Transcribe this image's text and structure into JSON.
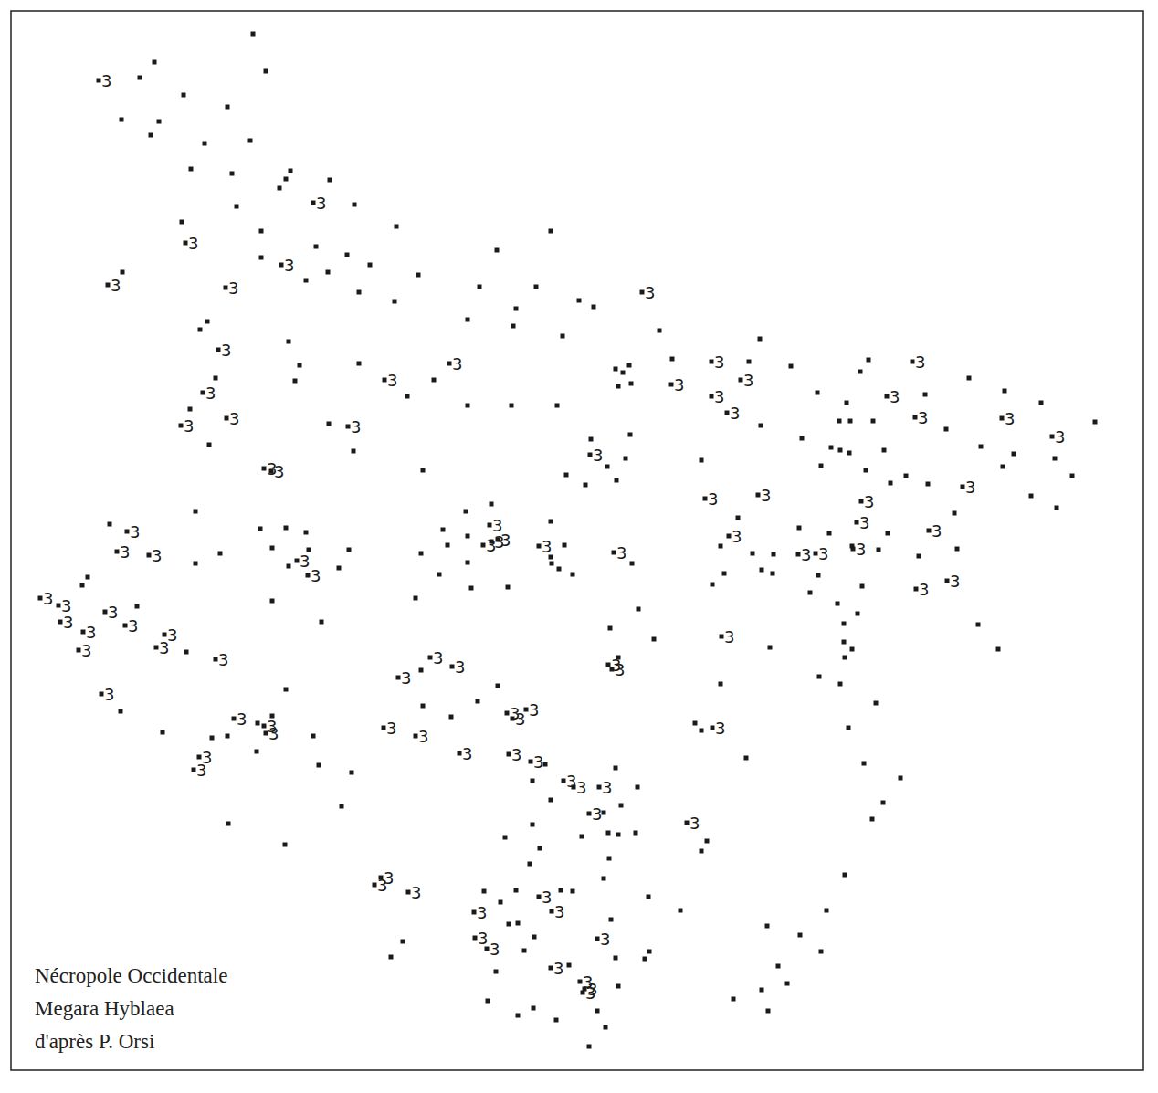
{
  "chart_data": {
    "type": "scatter",
    "annotations": [
      "Nécropole Occidentale",
      "Megara Hyblaea",
      "d'après P. Orsi"
    ],
    "xlim": [
      12,
      1252
    ],
    "ylim": [
      1172,
      12
    ],
    "tick_labels": false,
    "grid": false,
    "series": [
      {
        "marker": "square",
        "color": "#1a1a1a",
        "x": [
          277,
          169,
          291,
          153,
          201,
          249,
          133,
          174,
          165,
          274,
          224,
          209,
          318,
          254,
          313,
          361,
          306,
          388,
          259,
          199,
          434,
          286,
          603,
          346,
          544,
          380,
          286,
          405,
          134,
          359,
          458,
          335,
          525,
          587,
          393,
          432,
          634,
          650,
          565,
          512,
          227,
          562,
          219,
          722,
          616,
          832,
          316,
          736,
          820,
          951,
          393,
          328,
          866,
          689,
          674,
          942,
          682,
          236,
          1061,
          323,
          475,
          677,
          691,
          1100,
          895,
          1013,
          446,
          1140,
          927,
          512,
          560,
          610,
          208,
          956,
          919,
          931,
          360,
          833,
          1199,
          1036,
          690,
          647,
          878,
          229,
          910,
          1074,
          387,
          920,
          930,
          968,
          1110,
          685,
          768,
          899,
          665,
          1098,
          463,
          948,
          620,
          992,
          1174,
          1155,
          675,
          641,
          975,
          1016,
          1129,
          538,
          1157,
          214,
          510,
          1045,
          808,
          603,
          120,
          875,
          485,
          972,
          285,
          313,
          335,
          512,
          908,
          298,
          789,
          382,
          933,
          241,
          461,
          490,
          618,
          962,
          1048,
          1006,
          824,
          847,
          603,
          338,
          214,
          604,
          316,
          371,
          512,
          692,
          834,
          846,
          612,
          627,
          96,
          481,
          793,
          896,
          90,
          516,
          556,
          780,
          944,
          887,
          298,
          455,
          917,
          150,
          699,
          939,
          352,
          668,
          1071,
          924,
          716,
          924,
          204,
          843,
          1093,
          933,
          925,
          677,
          461,
          897,
          920,
          789,
          313,
          545,
          959,
          463,
          523,
          132,
          298,
          494,
          761,
          768,
          282,
          929,
          178,
          249,
          343,
          232,
          817,
          597,
          946,
          281,
          349,
          385,
          674,
          986,
          583,
          698,
          603,
          967,
          374,
          680,
          955,
          661,
          250,
          774,
          583,
          666,
          677,
          696,
          553,
          637,
          312,
          591,
          768,
          667,
          580,
          925,
          661,
          530,
          565,
          614,
          627,
          710,
          548,
          745,
          905,
          669,
          567,
          557,
          840,
          876,
          441,
          428,
          585,
          711,
          706,
          574,
          899,
          674,
          623,
          852,
          543,
          677,
          834,
          862,
          534,
          803,
          567,
          584,
          654,
          841,
          609,
          663,
          645
        ],
        "values": [
          37,
          68,
          78,
          85,
          104,
          117,
          131,
          133,
          148,
          154,
          157,
          185,
          187,
          190,
          196,
          197,
          206,
          224,
          226,
          243,
          248,
          253,
          253,
          270,
          274,
          279,
          282,
          290,
          298,
          298,
          301,
          307,
          314,
          314,
          320,
          330,
          329,
          336,
          338,
          350,
          352,
          357,
          361,
          362,
          368,
          371,
          374,
          393,
          396,
          394,
          398,
          400,
          401,
          400,
          404,
          407,
          408,
          414,
          414,
          417,
          416,
          423,
          420,
          428,
          430,
          432,
          434,
          441,
          441,
          444,
          444,
          444,
          448,
          461,
          461,
          461,
          464,
          466,
          462,
          470,
          476,
          481,
          480,
          487,
          490,
          489,
          494,
          493,
          496,
          493,
          497,
          502,
          504,
          510,
          511,
          511,
          515,
          515,
          520,
          521,
          521,
          502,
          526,
          531,
          529,
          530,
          543,
          552,
          556,
          560,
          560,
          562,
          567,
          571,
          574,
          578,
          580,
          584,
          579,
          578,
          583,
          587,
          584,
          600,
          598,
          602,
          598,
          606,
          606,
          597,
          597,
          602,
          601,
          609,
          606,
          607,
          610,
          602,
          617,
          617,
          620,
          622,
          616,
          617,
          624,
          628,
          623,
          629,
          632,
          629,
          628,
          630,
          641,
          644,
          643,
          640,
          642,
          649,
          658,
          655,
          661,
          664,
          667,
          672,
          681,
          688,
          684,
          683,
          700,
          703,
          714,
          709,
          711,
          711,
          720,
          720,
          734,
          741,
          749,
          749,
          755,
          751,
          770,
          773,
          768,
          779,
          784,
          785,
          792,
          800,
          792,
          797,
          802,
          806,
          806,
          808,
          830,
          837,
          836,
          823,
          838,
          846,
          841,
          852,
          855,
          862,
          876,
          879,
          883,
          882,
          897,
          890,
          902,
          921,
          903,
          912,
          914,
          912,
          917,
          916,
          925,
          929,
          932,
          940,
          946,
          958,
          962,
          976,
          975,
          975,
          976,
          982,
          988,
          997,
          997,
          1007,
          1011,
          1012,
          1014,
          1024,
          1031,
          1048,
          1026,
          1042,
          1050,
          1041,
          1042,
          1049,
          1057,
          1058,
          1064,
          1080,
          1084,
          1077,
          1096,
          1094,
          1112,
          1104,
          1107,
          1107,
          1117,
          1125,
          1146
        ]
      },
      {
        "marker": "square",
        "color": "#1a1a1a",
        "x": [
          108,
          343,
          203,
          308,
          118,
          247,
          703,
          239,
          779,
          999,
          492,
          421,
          735,
          811,
          222,
          779,
          971,
          796,
          1002,
          1097,
          248,
          198,
          381,
          1152,
          646,
          289,
          297,
          1054,
          772,
          830,
          943,
          938,
          536,
          139,
          1017,
          798,
          538,
          545,
          529,
          590,
          934,
          128,
          163,
          874,
          893,
          672,
          325,
          337,
          1037,
          1003,
          44,
          64,
          115,
          66,
          137,
          91,
          180,
          790,
          171,
          86,
          236,
          471,
          495,
          666,
          670,
          436,
          111,
          555,
          576,
          561,
          256,
          289,
          780,
          291,
          420,
          455,
          218,
          212,
          503,
          557,
          581,
          617,
          628,
          656,
          645,
          752,
          417,
          410,
          447,
          590,
          519,
          604,
          520,
          654,
          533,
          603,
          635,
          640,
          638
        ],
        "values": [
          88,
          222,
          266,
          290,
          312,
          315,
          320,
          383,
          396,
          396,
          398,
          416,
          421,
          416,
          430,
          434,
          434,
          452,
          457,
          458,
          458,
          466,
          467,
          478,
          498,
          513,
          516,
          533,
          546,
          542,
          549,
          572,
          575,
          582,
          581,
          587,
          593,
          591,
          597,
          598,
          601,
          604,
          608,
          607,
          606,
          605,
          614,
          630,
          636,
          645,
          655,
          663,
          670,
          681,
          685,
          692,
          695,
          697,
          709,
          712,
          722,
          720,
          730,
          728,
          733,
          742,
          760,
          781,
          777,
          787,
          787,
          795,
          797,
          803,
          797,
          806,
          829,
          843,
          825,
          826,
          834,
          855,
          862,
          862,
          891,
          901,
          961,
          969,
          977,
          982,
          999,
          998,
          1027,
          1028,
          1039,
          1060,
          1075,
          1083,
          1087
        ],
        "labels": [
          "3",
          "3",
          "3",
          "3",
          "3",
          "3",
          "3",
          "3",
          "3",
          "3",
          "3",
          "3",
          "3",
          "3",
          "3",
          "3",
          "3",
          "3",
          "3",
          "3",
          "3",
          "3",
          "3",
          "3",
          "3",
          "3",
          "3",
          "3",
          "3",
          "3",
          "3",
          "3",
          "3",
          "3",
          "3",
          "3",
          "3",
          "3",
          "3",
          "3",
          "3",
          "3",
          "3",
          "3",
          "3",
          "3",
          "3",
          "3",
          "3",
          "3",
          "3",
          "3",
          "3",
          "3",
          "3",
          "3",
          "3",
          "3",
          "3",
          "3",
          "3",
          "3",
          "3",
          "3",
          "3",
          "3",
          "3",
          "3",
          "3",
          "3",
          "3",
          "3",
          "3",
          "3",
          "3",
          "3",
          "3",
          "3",
          "3",
          "3",
          "3",
          "3",
          "3",
          "3",
          "3",
          "3",
          "3",
          "3",
          "3",
          "3",
          "3",
          "3",
          "3",
          "3",
          "3",
          "3",
          "3",
          "3",
          "3"
        ]
      }
    ]
  }
}
